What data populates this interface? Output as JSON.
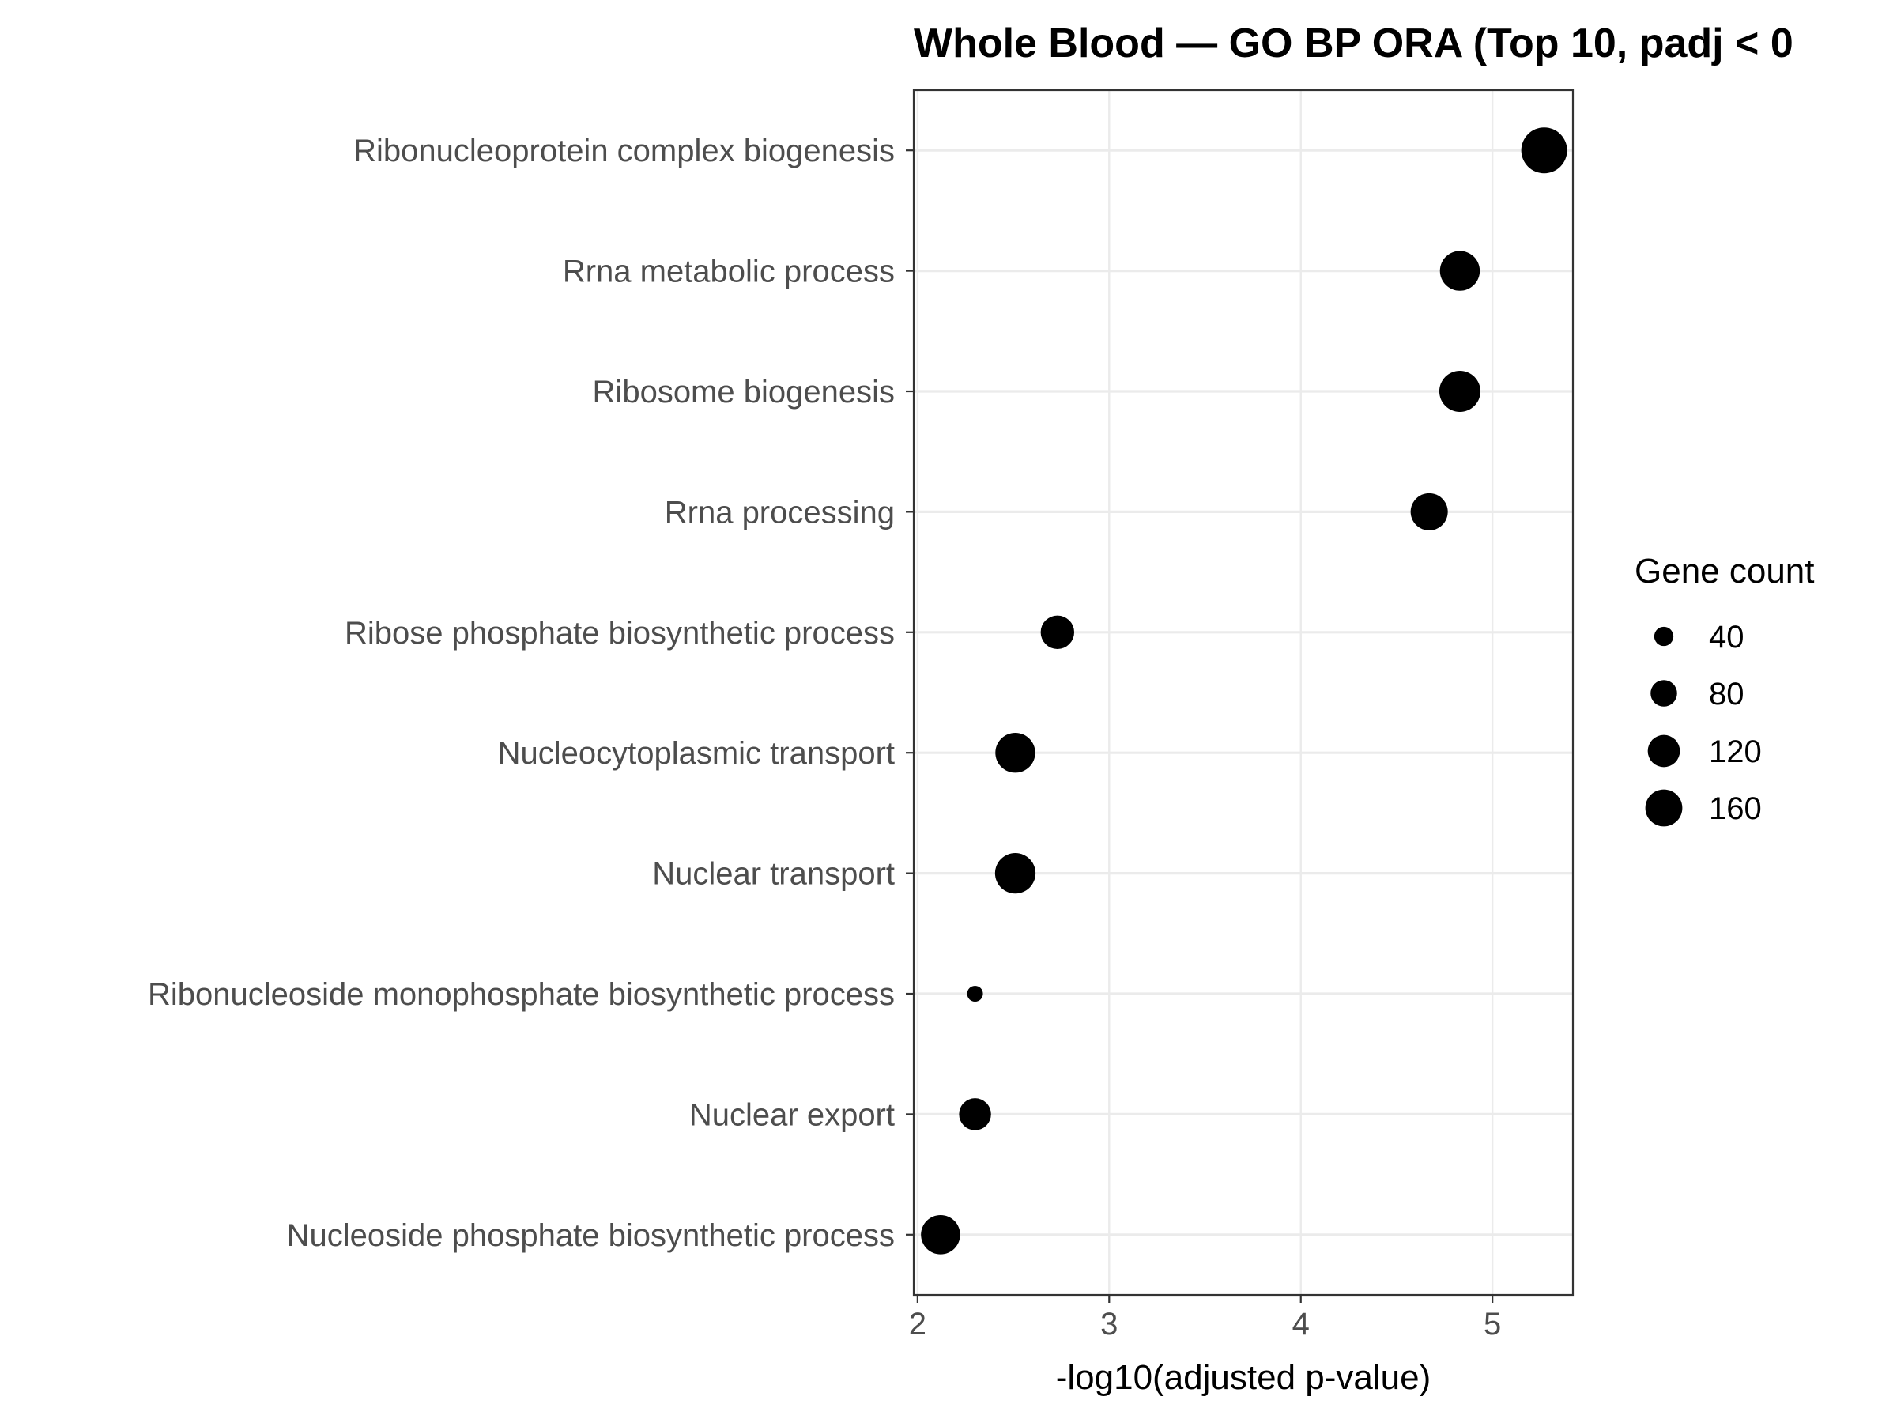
{
  "chart_data": {
    "type": "scatter",
    "title": "Whole Blood — GO BP ORA (Top 10, padj < 0",
    "xlabel": "-log10(adjusted p-value)",
    "ylabel": "",
    "xlim": [
      1.98,
      5.42
    ],
    "x_ticks": [
      "2",
      "3",
      "4",
      "5"
    ],
    "grid": true,
    "legend": {
      "title": "Gene count",
      "position": "right",
      "entries": [
        "40",
        "80",
        "120",
        "160"
      ],
      "entry_values": [
        40,
        80,
        120,
        160
      ]
    },
    "point_color": "#000000",
    "size_range": [
      20,
      200
    ],
    "points": [
      {
        "term": "Ribonucleoprotein complex biogenesis",
        "x": 5.27,
        "count": 200
      },
      {
        "term": "Rrna metabolic process",
        "x": 4.83,
        "count": 150
      },
      {
        "term": "Ribosome biogenesis",
        "x": 4.83,
        "count": 160
      },
      {
        "term": "Rrna processing",
        "x": 4.67,
        "count": 130
      },
      {
        "term": "Ribose phosphate biosynthetic process",
        "x": 2.73,
        "count": 105
      },
      {
        "term": "Nucleocytoplasmic transport",
        "x": 2.51,
        "count": 150
      },
      {
        "term": "Nuclear transport",
        "x": 2.51,
        "count": 155
      },
      {
        "term": "Ribonucleoside monophosphate biosynthetic process",
        "x": 2.3,
        "count": 20
      },
      {
        "term": "Nuclear export",
        "x": 2.3,
        "count": 95
      },
      {
        "term": "Nucleoside phosphate biosynthetic process",
        "x": 2.12,
        "count": 145
      }
    ]
  }
}
